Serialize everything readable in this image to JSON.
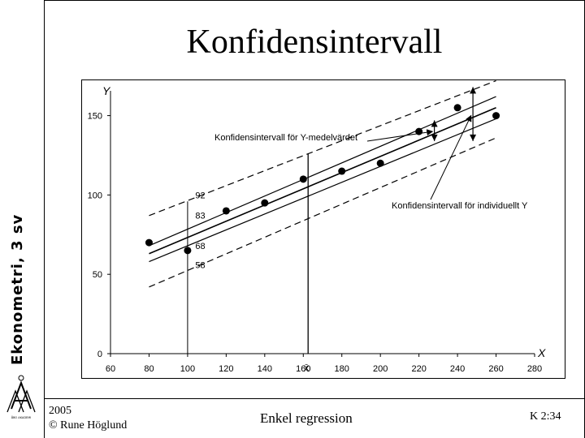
{
  "sidebar": {
    "title": "Ekonometri, 3 sv",
    "logo_text": "ÅBO AKADEMI",
    "logo_glyph": "Å"
  },
  "slide": {
    "title": "Konfidensintervall"
  },
  "footer": {
    "year": "2005",
    "author": "© Rune Höglund",
    "topic": "Enkel regression",
    "page": "K 2:34"
  },
  "chart_data": {
    "type": "scatter",
    "title": "",
    "xlabel": "X",
    "ylabel": "Y",
    "xlim": [
      60,
      280
    ],
    "ylim": [
      0,
      160
    ],
    "x_ticks": [
      "60",
      "80",
      "100",
      "120",
      "140",
      "160",
      "180",
      "200",
      "220",
      "240",
      "260",
      "280"
    ],
    "y_ticks": [
      "0",
      "50",
      "100",
      "150"
    ],
    "x_mean_label": "X̄",
    "x_mean": 162.5,
    "points": [
      {
        "x": 80,
        "y": 70
      },
      {
        "x": 100,
        "y": 65
      },
      {
        "x": 120,
        "y": 90
      },
      {
        "x": 140,
        "y": 95
      },
      {
        "x": 160,
        "y": 110
      },
      {
        "x": 180,
        "y": 115
      },
      {
        "x": 200,
        "y": 120
      },
      {
        "x": 220,
        "y": 140
      },
      {
        "x": 240,
        "y": 155
      },
      {
        "x": 260,
        "y": 150
      }
    ],
    "regression": {
      "x": [
        80,
        260
      ],
      "y": [
        63,
        155
      ]
    },
    "mean_ci_upper": {
      "x": [
        80,
        260
      ],
      "y": [
        68,
        162
      ]
    },
    "mean_ci_lower": {
      "x": [
        80,
        260
      ],
      "y": [
        58,
        148
      ]
    },
    "pred_upper": {
      "x": [
        80,
        260
      ],
      "y": [
        87,
        172
      ]
    },
    "pred_lower": {
      "x": [
        80,
        260
      ],
      "y": [
        42,
        136
      ]
    },
    "value_labels": [
      {
        "text": "92",
        "x": 104,
        "y": 98
      },
      {
        "text": "83",
        "x": 104,
        "y": 85
      },
      {
        "text": "68",
        "x": 104,
        "y": 66
      },
      {
        "text": "58",
        "x": 104,
        "y": 54
      }
    ],
    "annotations": {
      "mean_interval": "Konfidensintervall för Y-medelvärdet",
      "individual_interval": "Konfidensintervall för individuellt Y"
    }
  }
}
